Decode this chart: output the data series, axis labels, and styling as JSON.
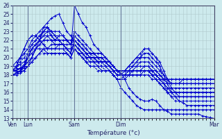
{
  "title": "",
  "xlabel": "Température (°c)",
  "ylabel": "",
  "background_color": "#cdeaed",
  "plot_bg_color": "#cdeaed",
  "grid_color": "#b0c8cc",
  "line_color": "#0000cc",
  "ylim": [
    13,
    26
  ],
  "yticks": [
    13,
    14,
    15,
    16,
    17,
    18,
    19,
    20,
    21,
    22,
    23,
    24,
    25,
    26
  ],
  "xtick_labels": [
    "Ven",
    "Lun",
    "Sam",
    "Dim",
    "Mar"
  ],
  "xtick_positions": [
    0,
    4,
    16,
    28,
    52
  ],
  "num_points": 53,
  "series": [
    [
      18.5,
      18.3,
      18.4,
      18.8,
      19.0,
      20.0,
      21.0,
      22.0,
      23.0,
      23.5,
      23.0,
      22.5,
      22.0,
      21.5,
      21.0,
      20.5,
      26.0,
      25.0,
      24.0,
      23.5,
      22.5,
      21.5,
      21.0,
      20.5,
      20.0,
      19.5,
      19.0,
      18.5,
      18.2,
      17.5,
      16.5,
      16.0,
      15.5,
      15.2,
      15.0,
      15.0,
      15.2,
      15.0,
      14.5,
      14.0,
      13.8,
      13.5,
      13.5,
      13.5,
      13.5,
      13.5,
      13.5,
      13.5,
      13.5,
      13.3,
      13.2,
      13.1,
      13.0
    ],
    [
      18.5,
      18.5,
      18.8,
      19.2,
      20.0,
      21.0,
      21.5,
      22.0,
      23.5,
      24.0,
      24.5,
      24.8,
      25.0,
      24.0,
      23.0,
      22.5,
      22.0,
      21.5,
      21.0,
      20.5,
      20.0,
      19.5,
      19.0,
      19.0,
      19.0,
      18.5,
      18.0,
      17.5,
      16.5,
      16.0,
      15.5,
      15.0,
      14.5,
      14.2,
      14.0,
      14.0,
      14.0,
      14.0,
      14.0,
      14.0,
      14.0,
      14.0,
      14.0,
      14.0,
      14.0,
      14.0,
      14.0,
      14.0,
      14.0,
      14.0,
      14.0,
      14.0,
      14.0
    ],
    [
      18.0,
      18.2,
      18.5,
      19.0,
      20.5,
      21.5,
      22.0,
      22.5,
      23.0,
      23.5,
      22.5,
      22.0,
      22.0,
      22.0,
      22.0,
      22.0,
      22.0,
      21.5,
      21.0,
      20.5,
      20.5,
      20.5,
      20.5,
      20.5,
      20.0,
      19.5,
      19.0,
      18.5,
      18.0,
      18.0,
      18.5,
      19.0,
      19.5,
      20.0,
      20.5,
      20.5,
      20.0,
      19.5,
      19.0,
      18.0,
      17.0,
      16.0,
      15.5,
      15.0,
      14.8,
      14.5,
      14.5,
      14.5,
      14.5,
      14.5,
      14.5,
      14.5,
      14.5
    ],
    [
      18.0,
      18.2,
      18.5,
      19.0,
      20.0,
      21.0,
      21.5,
      22.0,
      22.5,
      22.5,
      22.0,
      21.5,
      21.5,
      21.5,
      21.5,
      21.5,
      21.5,
      21.0,
      20.5,
      20.0,
      20.0,
      20.0,
      20.0,
      19.5,
      19.5,
      19.0,
      18.5,
      18.0,
      18.0,
      18.5,
      19.0,
      19.5,
      20.0,
      20.5,
      21.0,
      21.0,
      20.5,
      20.0,
      19.5,
      18.5,
      17.5,
      16.5,
      16.0,
      15.5,
      15.5,
      15.5,
      15.5,
      15.5,
      15.5,
      15.5,
      15.5,
      15.5,
      15.5
    ],
    [
      18.0,
      18.2,
      18.4,
      18.5,
      19.0,
      19.5,
      20.0,
      20.5,
      21.0,
      21.0,
      21.0,
      21.0,
      21.0,
      21.0,
      20.5,
      20.0,
      21.0,
      20.5,
      20.0,
      19.5,
      19.5,
      19.5,
      19.5,
      19.5,
      19.5,
      19.5,
      19.0,
      18.5,
      18.5,
      18.5,
      19.0,
      19.5,
      20.0,
      20.0,
      20.0,
      20.0,
      19.5,
      19.0,
      18.5,
      18.0,
      17.5,
      17.0,
      17.0,
      17.0,
      17.5,
      17.5,
      17.5,
      17.5,
      17.5,
      17.5,
      17.5,
      17.5,
      17.5
    ],
    [
      19.0,
      19.0,
      19.2,
      19.5,
      20.0,
      20.5,
      21.0,
      21.0,
      21.0,
      21.0,
      21.0,
      21.0,
      21.5,
      21.5,
      21.0,
      20.5,
      21.5,
      21.0,
      20.5,
      20.0,
      19.5,
      19.5,
      19.5,
      19.5,
      19.5,
      19.5,
      19.0,
      18.5,
      18.5,
      18.5,
      18.5,
      18.5,
      18.5,
      18.5,
      18.5,
      18.5,
      18.5,
      18.5,
      18.0,
      17.5,
      17.5,
      17.0,
      17.0,
      17.0,
      17.0,
      17.0,
      17.0,
      17.0,
      17.0,
      17.0,
      17.0,
      17.0,
      17.0
    ],
    [
      18.5,
      18.6,
      18.8,
      19.0,
      19.5,
      20.0,
      21.0,
      21.5,
      22.0,
      22.5,
      22.5,
      22.0,
      22.5,
      22.5,
      22.0,
      21.5,
      22.5,
      22.0,
      21.5,
      21.0,
      20.5,
      20.5,
      20.0,
      20.0,
      20.0,
      19.5,
      19.0,
      18.5,
      18.5,
      18.5,
      18.5,
      18.5,
      18.5,
      18.5,
      19.0,
      19.0,
      18.5,
      18.0,
      17.5,
      17.0,
      16.5,
      16.0,
      16.0,
      16.0,
      16.0,
      16.0,
      16.0,
      16.0,
      16.0,
      16.0,
      16.0,
      16.0,
      16.0
    ],
    [
      18.0,
      18.0,
      18.2,
      18.5,
      19.0,
      19.5,
      20.0,
      20.5,
      21.0,
      20.5,
      20.5,
      20.5,
      20.5,
      20.5,
      20.5,
      20.0,
      21.0,
      20.5,
      20.0,
      19.5,
      19.0,
      19.0,
      19.0,
      18.5,
      18.5,
      18.5,
      18.0,
      17.5,
      17.5,
      17.5,
      18.0,
      18.0,
      18.0,
      18.0,
      18.0,
      18.0,
      17.5,
      17.5,
      17.0,
      17.0,
      17.0,
      17.0,
      17.0,
      17.0,
      17.0,
      17.0,
      17.0,
      17.0,
      17.0,
      17.0,
      17.0,
      17.0,
      17.0
    ],
    [
      18.5,
      18.5,
      18.7,
      19.0,
      19.5,
      20.0,
      21.0,
      21.5,
      22.0,
      22.0,
      22.0,
      22.0,
      22.0,
      21.5,
      21.0,
      20.5,
      22.0,
      21.5,
      21.0,
      20.5,
      20.0,
      20.0,
      19.5,
      19.5,
      19.5,
      19.0,
      18.5,
      18.0,
      18.0,
      18.0,
      18.0,
      18.5,
      18.5,
      18.5,
      18.5,
      18.5,
      18.0,
      18.0,
      17.5,
      17.0,
      16.5,
      16.5,
      16.5,
      16.5,
      16.5,
      16.5,
      16.5,
      16.5,
      16.5,
      16.5,
      16.5,
      16.5,
      16.5
    ],
    [
      18.0,
      18.2,
      18.5,
      19.0,
      20.0,
      21.0,
      21.5,
      22.0,
      22.5,
      23.0,
      23.0,
      23.0,
      23.0,
      22.5,
      22.0,
      21.5,
      23.0,
      22.5,
      22.0,
      21.5,
      21.0,
      20.5,
      20.0,
      20.0,
      19.5,
      19.0,
      18.5,
      18.0,
      18.0,
      18.0,
      18.0,
      18.5,
      18.5,
      18.5,
      18.5,
      18.5,
      18.0,
      17.5,
      17.0,
      16.5,
      16.0,
      16.0,
      16.0,
      16.0,
      16.0,
      16.0,
      16.0,
      16.0,
      16.0,
      16.0,
      16.0,
      16.0,
      16.0
    ],
    [
      19.0,
      19.5,
      20.0,
      20.5,
      21.0,
      22.0,
      22.5,
      23.0,
      23.5,
      23.5,
      23.0,
      22.5,
      22.5,
      22.5,
      22.0,
      21.5,
      22.0,
      21.5,
      21.0,
      20.5,
      20.0,
      20.0,
      19.5,
      19.5,
      19.0,
      19.0,
      18.5,
      18.0,
      18.0,
      18.0,
      18.0,
      18.0,
      18.0,
      18.0,
      18.5,
      18.5,
      18.0,
      17.5,
      17.0,
      16.5,
      16.0,
      15.5,
      15.5,
      15.5,
      15.5,
      15.5,
      15.5,
      15.5,
      15.5,
      15.5,
      15.5,
      15.5,
      15.5
    ],
    [
      18.5,
      19.0,
      20.0,
      21.0,
      22.0,
      22.5,
      22.5,
      22.0,
      21.5,
      21.0,
      21.0,
      21.0,
      21.0,
      21.0,
      21.0,
      21.0,
      21.0,
      20.5,
      20.5,
      20.0,
      20.0,
      20.0,
      20.0,
      20.0,
      19.5,
      19.5,
      19.0,
      18.5,
      18.5,
      18.5,
      18.5,
      18.5,
      19.0,
      19.5,
      19.5,
      19.5,
      19.0,
      18.5,
      18.0,
      17.5,
      17.5,
      17.5,
      17.5,
      17.5,
      17.5,
      17.5,
      17.5,
      17.5,
      17.5,
      17.5,
      17.5,
      17.5,
      17.5
    ],
    [
      18.5,
      19.0,
      20.0,
      21.0,
      22.0,
      22.5,
      22.5,
      22.0,
      21.5,
      21.0,
      21.5,
      21.5,
      21.5,
      21.5,
      21.0,
      21.0,
      21.5,
      21.0,
      20.5,
      20.0,
      20.0,
      20.0,
      19.5,
      19.5,
      19.5,
      19.0,
      18.5,
      18.5,
      18.5,
      18.5,
      19.0,
      19.0,
      19.0,
      19.0,
      19.0,
      19.0,
      18.5,
      18.0,
      17.5,
      17.5,
      17.0,
      17.0,
      17.0,
      17.0,
      17.0,
      17.0,
      17.0,
      17.0,
      17.0,
      17.0,
      17.0,
      17.0,
      17.0
    ],
    [
      18.5,
      18.8,
      19.5,
      20.0,
      20.5,
      21.0,
      21.0,
      21.0,
      20.5,
      20.5,
      20.5,
      20.5,
      20.5,
      20.5,
      20.5,
      20.0,
      21.0,
      20.5,
      20.0,
      19.5,
      19.0,
      19.0,
      18.5,
      18.5,
      18.5,
      18.5,
      18.0,
      17.5,
      17.5,
      18.0,
      18.5,
      18.5,
      18.5,
      18.5,
      18.5,
      18.5,
      18.0,
      18.0,
      17.5,
      17.5,
      17.5,
      17.5,
      17.5,
      17.5,
      17.5,
      17.5,
      17.5,
      17.5,
      17.5,
      17.5,
      17.5,
      17.5,
      17.5
    ],
    [
      18.5,
      18.8,
      19.5,
      20.5,
      21.0,
      21.5,
      22.0,
      22.5,
      23.0,
      23.0,
      22.5,
      22.0,
      22.5,
      22.5,
      22.0,
      21.5,
      22.5,
      22.0,
      21.5,
      21.0,
      20.5,
      20.0,
      19.5,
      19.0,
      18.5,
      18.5,
      18.0,
      17.5,
      17.5,
      18.0,
      18.5,
      19.0,
      19.5,
      20.0,
      21.0,
      21.0,
      20.5,
      20.0,
      19.0,
      17.0,
      16.0,
      15.5,
      15.0,
      15.0,
      15.0,
      15.0,
      15.0,
      15.0,
      15.0,
      15.0,
      15.0,
      15.0,
      15.0
    ]
  ],
  "linestyles": [
    "solid",
    "solid",
    "solid",
    "solid",
    "solid",
    "solid",
    "solid",
    "solid",
    "solid",
    "solid",
    "solid",
    "solid",
    "solid",
    "dashed",
    "dashed"
  ]
}
